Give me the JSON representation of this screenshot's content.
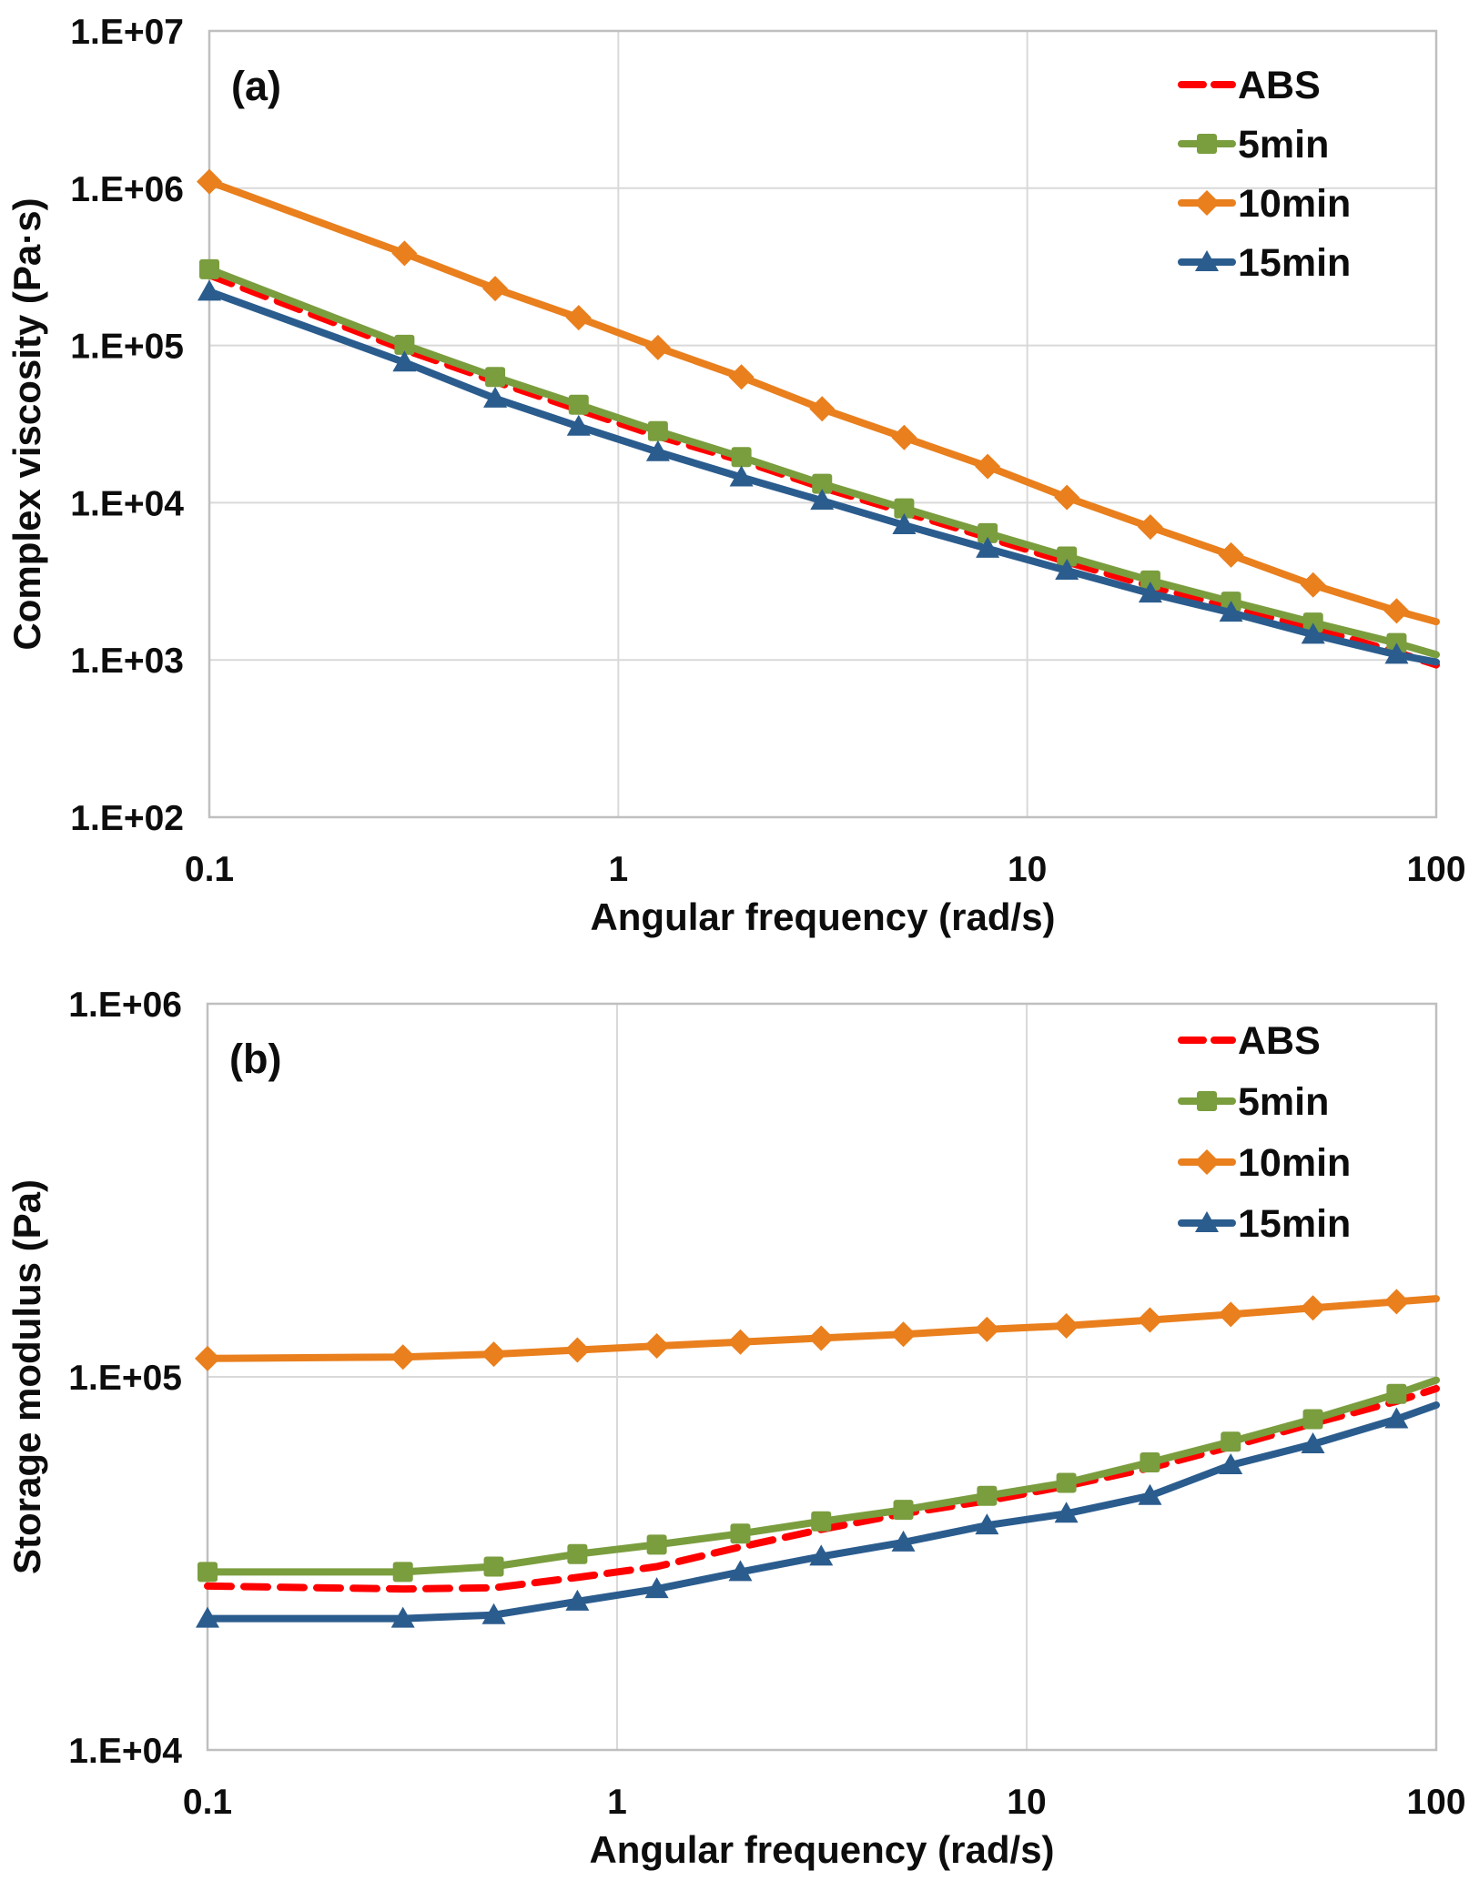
{
  "figure": {
    "background": "#ffffff",
    "text_color": "#0d0d0d",
    "grid_color": "#d9d9d9",
    "border_color": "#bfbfbf",
    "series_styles": [
      {
        "name": "ABS",
        "color": "#ff0000",
        "marker": "none",
        "dash": true
      },
      {
        "name": "5min",
        "color": "#7a9d3e",
        "marker": "square",
        "dash": false
      },
      {
        "name": "10min",
        "color": "#e97f1d",
        "marker": "diamond",
        "dash": false
      },
      {
        "name": "15min",
        "color": "#2b5c8e",
        "marker": "triangle",
        "dash": false
      }
    ]
  },
  "chart_data": [
    {
      "type": "line",
      "panel_label": "(a)",
      "xlabel": "Angular frequency (rad/s)",
      "ylabel": "Complex viscosity (Pa·s)",
      "x_scale": "log",
      "y_scale": "log",
      "xlim": [
        0.1,
        100
      ],
      "ylim": [
        100,
        10000000
      ],
      "x_tick_values": [
        0.1,
        1,
        10,
        100
      ],
      "x_tick_labels": [
        "0.1",
        "1",
        "10",
        "100"
      ],
      "y_tick_values": [
        10000000,
        1000000,
        100000,
        10000,
        1000,
        100
      ],
      "y_tick_labels": [
        "1.E+07",
        "1.E+06",
        "1.E+05",
        "1.E+04",
        "1.E+03",
        "1.E+02"
      ],
      "grid": true,
      "legend_position": "top-right-inside",
      "legend_entries": [
        "ABS",
        "5min",
        "10min",
        "15min"
      ],
      "x": [
        0.1,
        0.3,
        0.5,
        0.8,
        1.25,
        2,
        3.15,
        5,
        8,
        12.5,
        20,
        31.5,
        50,
        80,
        100
      ],
      "series": [
        {
          "name": "ABS",
          "values": [
            280000,
            94000,
            59000,
            39000,
            26500,
            18500,
            12500,
            8700,
            6000,
            4200,
            2950,
            2150,
            1600,
            1120,
            930
          ]
        },
        {
          "name": "5min",
          "values": [
            305000,
            101000,
            63000,
            42000,
            28500,
            19500,
            13200,
            9200,
            6400,
            4550,
            3200,
            2350,
            1730,
            1280,
            1080
          ]
        },
        {
          "name": "10min",
          "values": [
            1100000,
            385000,
            230000,
            150000,
            97000,
            63000,
            39500,
            26000,
            17000,
            10800,
            7000,
            4650,
            3000,
            2050,
            1750
          ]
        },
        {
          "name": "15min",
          "values": [
            220000,
            78000,
            46000,
            30500,
            21000,
            14500,
            10300,
            7200,
            5100,
            3700,
            2650,
            2000,
            1450,
            1080,
            970
          ]
        }
      ]
    },
    {
      "type": "line",
      "panel_label": "(b)",
      "xlabel": "Angular frequency (rad/s)",
      "ylabel": "Storage modulus (Pa)",
      "x_scale": "log",
      "y_scale": "log",
      "xlim": [
        0.1,
        100
      ],
      "ylim": [
        10000,
        1000000
      ],
      "x_tick_values": [
        0.1,
        1,
        10,
        100
      ],
      "x_tick_labels": [
        "0.1",
        "1",
        "10",
        "100"
      ],
      "y_tick_values": [
        1000000,
        100000,
        10000
      ],
      "y_tick_labels": [
        "1.E+06",
        "1.E+05",
        "1.E+04"
      ],
      "grid": true,
      "legend_position": "top-right-inside",
      "legend_entries": [
        "ABS",
        "5min",
        "10min",
        "15min"
      ],
      "x": [
        0.1,
        0.3,
        0.5,
        0.8,
        1.25,
        2,
        3.15,
        5,
        8,
        12.5,
        20,
        31.5,
        50,
        80,
        100
      ],
      "series": [
        {
          "name": "ABS",
          "values": [
            27500,
            27000,
            27200,
            29000,
            31000,
            35000,
            39000,
            43000,
            46500,
            51000,
            57000,
            65000,
            75000,
            86000,
            93000
          ]
        },
        {
          "name": "5min",
          "values": [
            30000,
            30000,
            31000,
            33500,
            35500,
            38000,
            41000,
            44000,
            48000,
            52000,
            59000,
            67000,
            77000,
            90000,
            98000
          ]
        },
        {
          "name": "10min",
          "values": [
            112000,
            113000,
            115000,
            118000,
            121000,
            124000,
            127000,
            130000,
            134000,
            137000,
            142000,
            147000,
            153000,
            159000,
            162000
          ]
        },
        {
          "name": "15min",
          "values": [
            22500,
            22500,
            23000,
            25000,
            27000,
            30000,
            33000,
            36000,
            40000,
            43000,
            48000,
            58000,
            66000,
            77000,
            84000
          ]
        }
      ]
    }
  ]
}
